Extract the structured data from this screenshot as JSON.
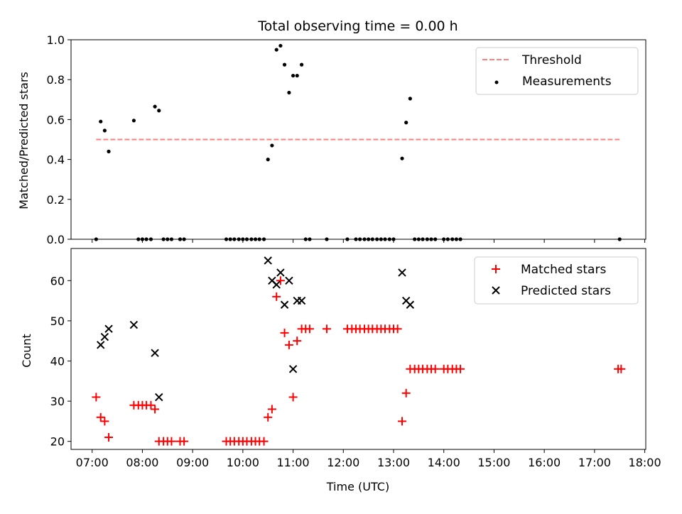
{
  "title": "Total observing time = 0.00 h",
  "colors": {
    "threshold": "#ff7f7f",
    "measurement": "#000000",
    "matched": "#ff0000",
    "predicted": "#000000"
  },
  "chart_data": [
    {
      "type": "scatter",
      "ylabel": "Matched/Predicted stars",
      "ylim": [
        0,
        1.0
      ],
      "yticks": [
        "0.0",
        "0.2",
        "0.4",
        "0.6",
        "0.8",
        "1.0"
      ],
      "ytick_values": [
        0,
        0.2,
        0.4,
        0.6,
        0.8,
        1.0
      ],
      "legend_position": "top-right",
      "legend": [
        "Threshold",
        "Measurements"
      ],
      "threshold": {
        "value": 0.5,
        "x_range": [
          7.08,
          17.5
        ]
      },
      "series": [
        {
          "name": "Measurements",
          "points": [
            [
              7.08,
              0
            ],
            [
              7.17,
              0.59
            ],
            [
              7.25,
              0.545
            ],
            [
              7.33,
              0.44
            ],
            [
              7.83,
              0.595
            ],
            [
              7.92,
              0
            ],
            [
              8.0,
              0
            ],
            [
              8.08,
              0
            ],
            [
              8.17,
              0
            ],
            [
              8.25,
              0.665
            ],
            [
              8.33,
              0.645
            ],
            [
              8.42,
              0
            ],
            [
              8.5,
              0
            ],
            [
              8.58,
              0
            ],
            [
              8.75,
              0
            ],
            [
              8.83,
              0
            ],
            [
              9.67,
              0
            ],
            [
              9.75,
              0
            ],
            [
              9.83,
              0
            ],
            [
              9.92,
              0
            ],
            [
              10.0,
              0
            ],
            [
              10.08,
              0
            ],
            [
              10.17,
              0
            ],
            [
              10.25,
              0
            ],
            [
              10.33,
              0
            ],
            [
              10.42,
              0
            ],
            [
              10.5,
              0.4
            ],
            [
              10.58,
              0.47
            ],
            [
              10.67,
              0.95
            ],
            [
              10.75,
              0.97
            ],
            [
              10.83,
              0.875
            ],
            [
              10.92,
              0.735
            ],
            [
              11.0,
              0.82
            ],
            [
              11.08,
              0.82
            ],
            [
              11.17,
              0.875
            ],
            [
              11.25,
              0
            ],
            [
              11.33,
              0
            ],
            [
              11.67,
              0
            ],
            [
              12.08,
              0
            ],
            [
              12.25,
              0
            ],
            [
              12.33,
              0
            ],
            [
              12.42,
              0
            ],
            [
              12.5,
              0
            ],
            [
              12.58,
              0
            ],
            [
              12.67,
              0
            ],
            [
              12.75,
              0
            ],
            [
              12.83,
              0
            ],
            [
              12.92,
              0
            ],
            [
              13.0,
              0
            ],
            [
              13.17,
              0.405
            ],
            [
              13.25,
              0.585
            ],
            [
              13.33,
              0.705
            ],
            [
              13.42,
              0
            ],
            [
              13.5,
              0
            ],
            [
              13.58,
              0
            ],
            [
              13.67,
              0
            ],
            [
              13.75,
              0
            ],
            [
              13.83,
              0
            ],
            [
              14.0,
              0
            ],
            [
              14.08,
              0
            ],
            [
              14.17,
              0
            ],
            [
              14.25,
              0
            ],
            [
              14.33,
              0
            ],
            [
              17.5,
              0
            ]
          ]
        }
      ]
    },
    {
      "type": "scatter",
      "ylabel": "Count",
      "xlabel": "Time (UTC)",
      "ylim": [
        18,
        68
      ],
      "yticks": [
        "20",
        "30",
        "40",
        "50",
        "60"
      ],
      "ytick_values": [
        20,
        30,
        40,
        50,
        60
      ],
      "xlim": [
        6.58,
        18.02
      ],
      "xticks": [
        "07:00",
        "08:00",
        "09:00",
        "10:00",
        "11:00",
        "12:00",
        "13:00",
        "14:00",
        "15:00",
        "16:00",
        "17:00",
        "18:00"
      ],
      "xtick_values": [
        7,
        8,
        9,
        10,
        11,
        12,
        13,
        14,
        15,
        16,
        17,
        18
      ],
      "legend_position": "top-right",
      "legend": [
        "Matched stars",
        "Predicted stars"
      ],
      "series": [
        {
          "name": "Matched stars",
          "points": [
            [
              7.08,
              31
            ],
            [
              7.17,
              26
            ],
            [
              7.25,
              25
            ],
            [
              7.33,
              21
            ],
            [
              7.83,
              29
            ],
            [
              7.92,
              29
            ],
            [
              8.0,
              29
            ],
            [
              8.08,
              29
            ],
            [
              8.17,
              29
            ],
            [
              8.25,
              28
            ],
            [
              8.33,
              20
            ],
            [
              8.42,
              20
            ],
            [
              8.5,
              20
            ],
            [
              8.58,
              20
            ],
            [
              8.75,
              20
            ],
            [
              8.83,
              20
            ],
            [
              9.67,
              20
            ],
            [
              9.75,
              20
            ],
            [
              9.83,
              20
            ],
            [
              9.92,
              20
            ],
            [
              10.0,
              20
            ],
            [
              10.08,
              20
            ],
            [
              10.17,
              20
            ],
            [
              10.25,
              20
            ],
            [
              10.33,
              20
            ],
            [
              10.42,
              20
            ],
            [
              10.5,
              26
            ],
            [
              10.58,
              28
            ],
            [
              10.67,
              56
            ],
            [
              10.75,
              60
            ],
            [
              10.83,
              47
            ],
            [
              10.92,
              44
            ],
            [
              11.0,
              31
            ],
            [
              11.08,
              45
            ],
            [
              11.17,
              48
            ],
            [
              11.25,
              48
            ],
            [
              11.33,
              48
            ],
            [
              11.67,
              48
            ],
            [
              12.08,
              48
            ],
            [
              12.17,
              48
            ],
            [
              12.25,
              48
            ],
            [
              12.33,
              48
            ],
            [
              12.42,
              48
            ],
            [
              12.5,
              48
            ],
            [
              12.58,
              48
            ],
            [
              12.67,
              48
            ],
            [
              12.75,
              48
            ],
            [
              12.83,
              48
            ],
            [
              12.92,
              48
            ],
            [
              13.0,
              48
            ],
            [
              13.08,
              48
            ],
            [
              13.17,
              25
            ],
            [
              13.25,
              32
            ],
            [
              13.33,
              38
            ],
            [
              13.42,
              38
            ],
            [
              13.5,
              38
            ],
            [
              13.58,
              38
            ],
            [
              13.67,
              38
            ],
            [
              13.75,
              38
            ],
            [
              13.83,
              38
            ],
            [
              14.0,
              38
            ],
            [
              14.08,
              38
            ],
            [
              14.17,
              38
            ],
            [
              14.25,
              38
            ],
            [
              14.33,
              38
            ],
            [
              17.47,
              38
            ],
            [
              17.53,
              38
            ]
          ]
        },
        {
          "name": "Predicted stars",
          "points": [
            [
              7.17,
              44
            ],
            [
              7.25,
              46
            ],
            [
              7.33,
              48
            ],
            [
              7.83,
              49
            ],
            [
              8.25,
              42
            ],
            [
              8.33,
              31
            ],
            [
              10.5,
              65
            ],
            [
              10.58,
              60
            ],
            [
              10.67,
              59
            ],
            [
              10.75,
              62
            ],
            [
              10.83,
              54
            ],
            [
              10.92,
              60
            ],
            [
              11.0,
              38
            ],
            [
              11.08,
              55
            ],
            [
              11.17,
              55
            ],
            [
              13.17,
              62
            ],
            [
              13.25,
              55
            ],
            [
              13.33,
              54
            ]
          ]
        }
      ]
    }
  ]
}
